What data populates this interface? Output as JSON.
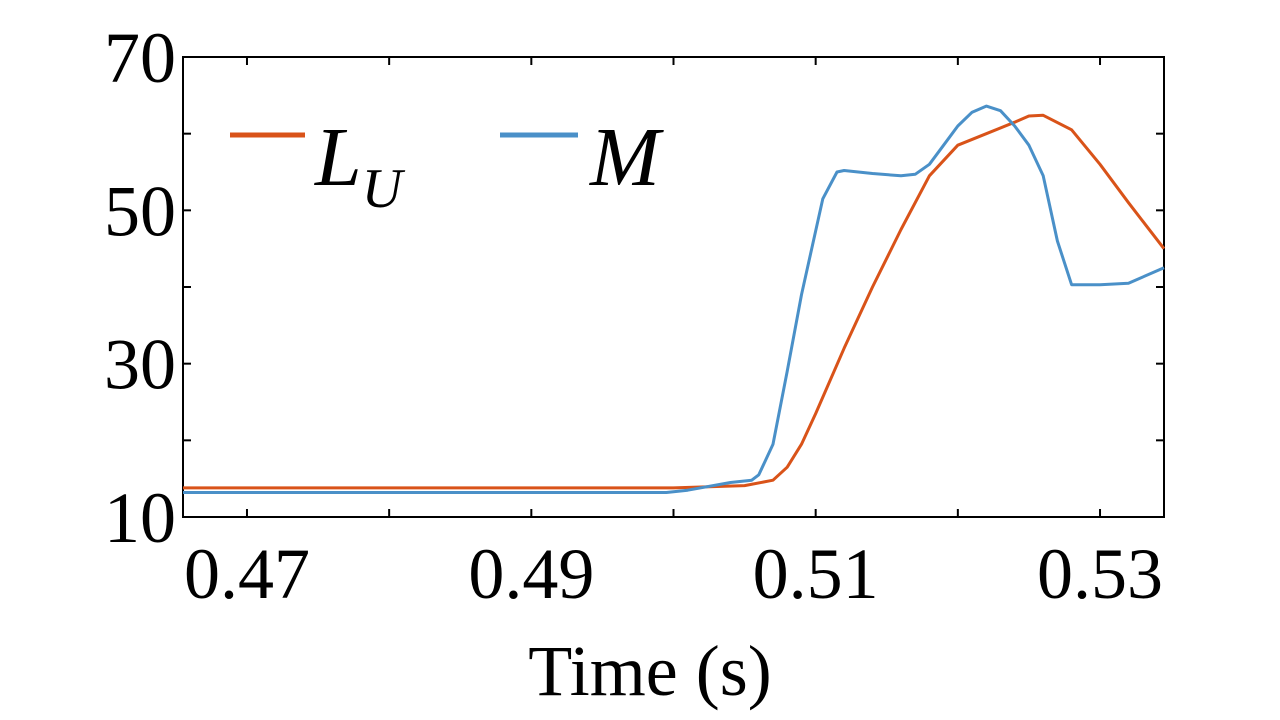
{
  "chart_data": {
    "type": "line",
    "xlabel": "Time (s)",
    "ylabel": "",
    "xlim": [
      0.4655,
      0.5345
    ],
    "ylim": [
      10,
      70
    ],
    "xticks": [
      0.47,
      0.49,
      0.51,
      0.53
    ],
    "xtick_labels": [
      "0.47",
      "0.49",
      "0.51",
      "0.53"
    ],
    "yticks": [
      10,
      30,
      50,
      70
    ],
    "ytick_labels": [
      "10",
      "30",
      "50",
      "70"
    ],
    "grid": false,
    "legend_position": "top-left",
    "series": [
      {
        "name": "L",
        "name_subscript": "U",
        "color": "#D95319",
        "x": [
          0.4655,
          0.5,
          0.505,
          0.507,
          0.508,
          0.509,
          0.51,
          0.512,
          0.514,
          0.516,
          0.518,
          0.52,
          0.522,
          0.524,
          0.525,
          0.526,
          0.528,
          0.53,
          0.532,
          0.5345
        ],
        "y": [
          13.8,
          13.8,
          14.1,
          14.8,
          16.5,
          19.5,
          23.5,
          32.0,
          40.0,
          47.5,
          54.5,
          58.5,
          60.0,
          61.5,
          62.3,
          62.4,
          60.5,
          56.0,
          51.0,
          45.0
        ]
      },
      {
        "name": "M",
        "color": "#4A90C8",
        "x": [
          0.4655,
          0.4995,
          0.501,
          0.504,
          0.5055,
          0.506,
          0.507,
          0.508,
          0.509,
          0.5105,
          0.5115,
          0.512,
          0.514,
          0.516,
          0.517,
          0.518,
          0.519,
          0.52,
          0.521,
          0.522,
          0.523,
          0.524,
          0.525,
          0.526,
          0.527,
          0.528,
          0.53,
          0.532,
          0.5345
        ],
        "y": [
          13.2,
          13.2,
          13.5,
          14.5,
          14.8,
          15.5,
          19.5,
          29.0,
          39.0,
          51.5,
          55.0,
          55.2,
          54.8,
          54.5,
          54.7,
          56.0,
          58.5,
          61.0,
          62.8,
          63.6,
          63.0,
          61.0,
          58.5,
          54.5,
          46.0,
          40.3,
          40.3,
          40.5,
          42.5
        ]
      }
    ]
  }
}
